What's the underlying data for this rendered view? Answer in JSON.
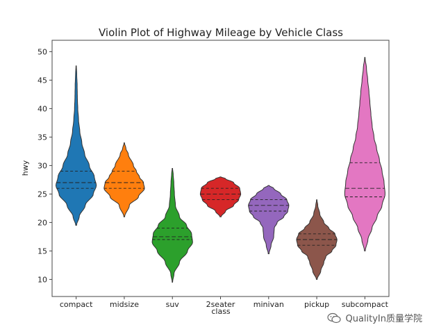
{
  "chart_data": {
    "type": "violin",
    "title": "Violin Plot of Highway Mileage by Vehicle Class",
    "xlabel": "class",
    "ylabel": "hwy",
    "ylim": [
      7,
      52
    ],
    "yticks": [
      10,
      15,
      20,
      25,
      30,
      35,
      40,
      45,
      50
    ],
    "grid": false,
    "inner": "quartile",
    "categories": [
      "compact",
      "midsize",
      "suv",
      "2seater",
      "minivan",
      "pickup",
      "subcompact"
    ],
    "series": [
      {
        "category": "compact",
        "color": "#1f77b4",
        "min": 19.5,
        "max": 47.5,
        "q1": 26,
        "median": 27,
        "q3": 29,
        "profile": [
          [
            19.5,
            0.02
          ],
          [
            21,
            0.15
          ],
          [
            23,
            0.45
          ],
          [
            25,
            0.85
          ],
          [
            26.5,
            1.0
          ],
          [
            28,
            0.9
          ],
          [
            30,
            0.65
          ],
          [
            32,
            0.42
          ],
          [
            34,
            0.28
          ],
          [
            36,
            0.18
          ],
          [
            38,
            0.12
          ],
          [
            40,
            0.08
          ],
          [
            42,
            0.06
          ],
          [
            44,
            0.05
          ],
          [
            46,
            0.03
          ],
          [
            47.5,
            0.01
          ]
        ]
      },
      {
        "category": "midsize",
        "color": "#ff7f0e",
        "min": 21,
        "max": 34,
        "q1": 26,
        "median": 27,
        "q3": 29,
        "profile": [
          [
            21,
            0.02
          ],
          [
            23,
            0.25
          ],
          [
            24.5,
            0.7
          ],
          [
            26,
            1.0
          ],
          [
            27,
            0.95
          ],
          [
            28,
            0.75
          ],
          [
            29,
            0.6
          ],
          [
            30,
            0.45
          ],
          [
            32,
            0.2
          ],
          [
            33,
            0.08
          ],
          [
            34,
            0.01
          ]
        ]
      },
      {
        "category": "suv",
        "color": "#2ca02c",
        "min": 9.5,
        "max": 29.5,
        "q1": 17,
        "median": 17.5,
        "q3": 19,
        "profile": [
          [
            9.5,
            0.01
          ],
          [
            11,
            0.08
          ],
          [
            13,
            0.35
          ],
          [
            15,
            0.75
          ],
          [
            16.5,
            1.0
          ],
          [
            18,
            0.95
          ],
          [
            19.5,
            0.7
          ],
          [
            21,
            0.35
          ],
          [
            23,
            0.15
          ],
          [
            25,
            0.1
          ],
          [
            27,
            0.07
          ],
          [
            28.5,
            0.04
          ],
          [
            29.5,
            0.01
          ]
        ]
      },
      {
        "category": "2seater",
        "color": "#d62728",
        "min": 21,
        "max": 28,
        "q1": 24,
        "median": 25,
        "q3": 26,
        "profile": [
          [
            21,
            0.03
          ],
          [
            22,
            0.25
          ],
          [
            23,
            0.65
          ],
          [
            24,
            0.9
          ],
          [
            25,
            1.0
          ],
          [
            26,
            0.95
          ],
          [
            27,
            0.65
          ],
          [
            27.7,
            0.25
          ],
          [
            28,
            0.02
          ]
        ]
      },
      {
        "category": "minivan",
        "color": "#9467bd",
        "min": 14.5,
        "max": 26.5,
        "q1": 22,
        "median": 23,
        "q3": 24,
        "profile": [
          [
            14.5,
            0.02
          ],
          [
            16,
            0.12
          ],
          [
            17.5,
            0.25
          ],
          [
            19,
            0.28
          ],
          [
            20,
            0.42
          ],
          [
            21,
            0.75
          ],
          [
            22,
            0.95
          ],
          [
            23,
            1.0
          ],
          [
            24,
            0.9
          ],
          [
            25,
            0.6
          ],
          [
            26,
            0.25
          ],
          [
            26.5,
            0.02
          ]
        ]
      },
      {
        "category": "pickup",
        "color": "#8c564b",
        "min": 10,
        "max": 24,
        "q1": 16,
        "median": 17,
        "q3": 18,
        "profile": [
          [
            10,
            0.02
          ],
          [
            11.5,
            0.2
          ],
          [
            13,
            0.35
          ],
          [
            14,
            0.45
          ],
          [
            15,
            0.75
          ],
          [
            16,
            0.95
          ],
          [
            17,
            1.0
          ],
          [
            18,
            0.9
          ],
          [
            19,
            0.6
          ],
          [
            20,
            0.35
          ],
          [
            21.5,
            0.15
          ],
          [
            23,
            0.05
          ],
          [
            24,
            0.01
          ]
        ]
      },
      {
        "category": "subcompact",
        "color": "#e377c2",
        "min": 15,
        "max": 49,
        "q1": 24.5,
        "median": 26,
        "q3": 30.5,
        "profile": [
          [
            15,
            0.02
          ],
          [
            17,
            0.15
          ],
          [
            19,
            0.35
          ],
          [
            21,
            0.6
          ],
          [
            23,
            0.85
          ],
          [
            25,
            1.0
          ],
          [
            27,
            0.95
          ],
          [
            29,
            0.85
          ],
          [
            31,
            0.72
          ],
          [
            33,
            0.58
          ],
          [
            35,
            0.45
          ],
          [
            37,
            0.36
          ],
          [
            39,
            0.3
          ],
          [
            41,
            0.25
          ],
          [
            43,
            0.2
          ],
          [
            45,
            0.14
          ],
          [
            47,
            0.08
          ],
          [
            49,
            0.01
          ]
        ]
      }
    ]
  },
  "watermark": {
    "icon": "wechat-icon",
    "text": "QualityIn质量学院"
  }
}
